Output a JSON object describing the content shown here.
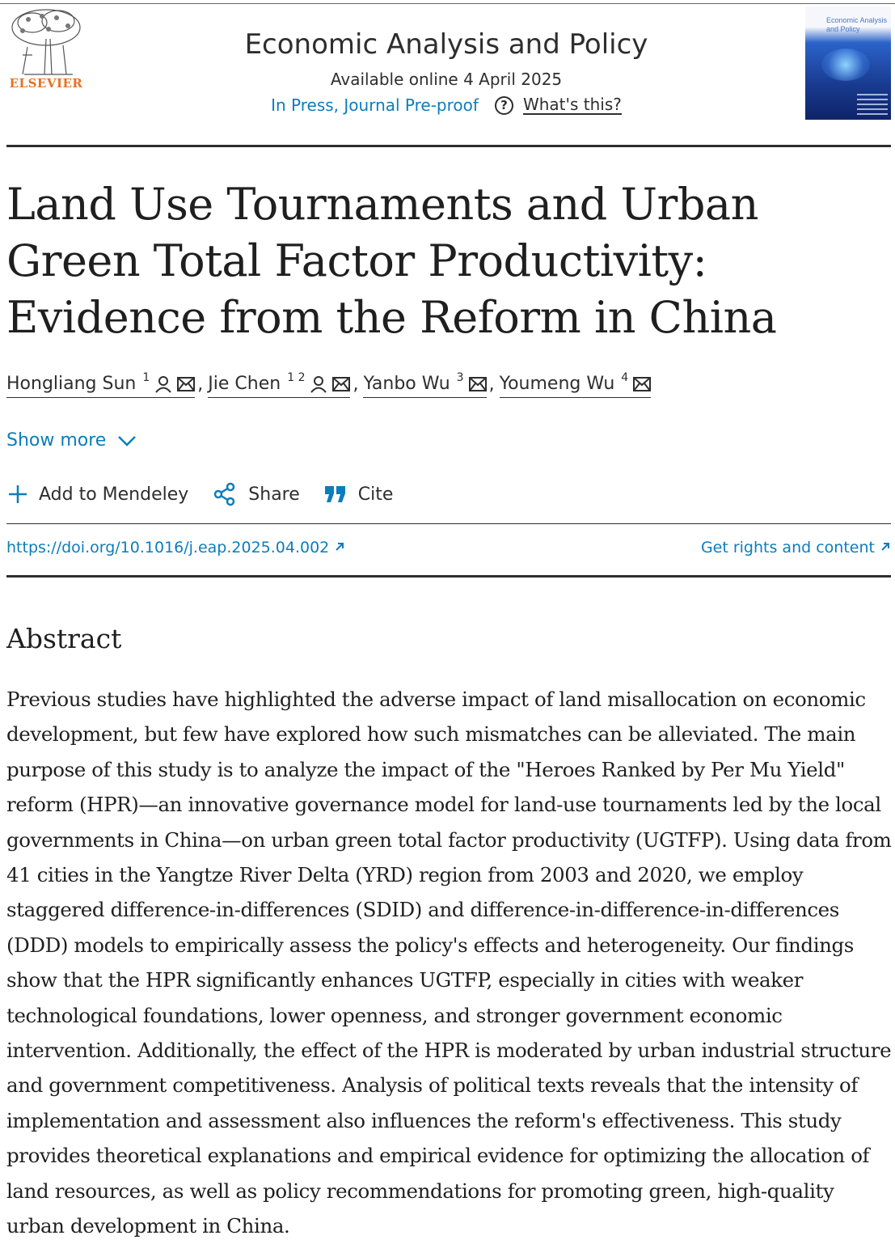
{
  "publisher": {
    "name": "ELSEVIER"
  },
  "journal": {
    "title": "Economic Analysis and Policy",
    "available": "Available online 4 April 2025",
    "status": "In Press, Journal Pre-proof",
    "whats_this": "What's this?",
    "cover_title": "Economic Analysis and Policy"
  },
  "article": {
    "title": "Land Use Tournaments and Urban Green Total Factor Productivity: Evidence from the Reform in China",
    "authors": [
      {
        "name": "Hongliang Sun",
        "sup": "1"
      },
      {
        "name": "Jie Chen",
        "sup": "1 2"
      },
      {
        "name": "Yanbo Wu",
        "sup": "3"
      },
      {
        "name": "Youmeng Wu",
        "sup": "4"
      }
    ],
    "author_separator": ",",
    "show_more": "Show more",
    "doi": "https://doi.org/10.1016/j.eap.2025.04.002",
    "rights": "Get rights and content"
  },
  "actions": {
    "mendeley": "Add to Mendeley",
    "share": "Share",
    "cite": "Cite"
  },
  "abstract": {
    "heading": "Abstract",
    "text": "Previous studies have highlighted the adverse impact of land misallocation on economic development, but few have explored how such mismatches can be alleviated. The main purpose of this study is to analyze the impact of the \"Heroes Ranked by Per Mu Yield\" reform (HPR)—an innovative governance model for land-use tournaments led by the local governments in China—on urban green total factor productivity (UGTFP). Using data from 41 cities in the Yangtze River Delta (YRD) region from 2003 and 2020, we employ staggered difference-in-differences (SDID) and difference-in-difference-in-differences (DDD) models to empirically assess the policy's effects and heterogeneity. Our findings show that the HPR significantly enhances UGTFP, especially in cities with weaker technological foundations, lower openness, and stronger government economic intervention. Additionally, the effect of the HPR is moderated by urban industrial structure and government competitiveness. Analysis of political texts reveals that the intensity of implementation and assessment also influences the reform's effectiveness. This study provides theoretical explanations and empirical evidence for optimizing the allocation of land resources, as well as policy recommendations for promoting green, high-quality urban development in China."
  },
  "colors": {
    "link": "#0c7dbb",
    "publisher": "#e9711c",
    "text": "#1f1f1f"
  }
}
